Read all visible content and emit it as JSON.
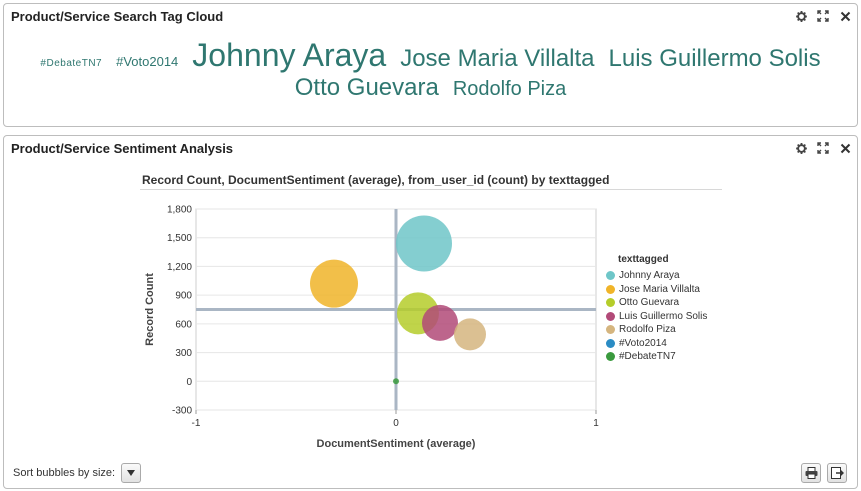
{
  "tagcloud_panel": {
    "title": "Product/Service Search Tag Cloud",
    "tags_row1": [
      {
        "text": "#DebateTN7",
        "size": "s1"
      },
      {
        "text": "#Voto2014",
        "size": "s2"
      },
      {
        "text": "Johnny Araya",
        "size": "s3"
      },
      {
        "text": "Jose Maria Villalta",
        "size": "s4"
      },
      {
        "text": "Luis Guillermo Solis",
        "size": "s4"
      }
    ],
    "tags_row2": [
      {
        "text": "Otto Guevara",
        "size": "s4"
      },
      {
        "text": "Rodolfo Piza",
        "size": "s5"
      }
    ]
  },
  "sentiment_panel": {
    "title": "Product/Service Sentiment Analysis",
    "sort_label": "Sort bubbles by size:"
  },
  "tool_icons": [
    "gear-icon",
    "maximize-icon",
    "close-icon"
  ],
  "chart_data": {
    "type": "scatter",
    "title": "Record Count, DocumentSentiment (average), from_user_id (count) by texttagged",
    "xlabel": "DocumentSentiment (average)",
    "ylabel": "Record Count",
    "xlim": [
      -1,
      1
    ],
    "ylim": [
      -300,
      1800
    ],
    "xticks": [
      -1,
      0,
      1
    ],
    "yticks": [
      -300,
      0,
      300,
      600,
      900,
      1200,
      1500,
      1800
    ],
    "ytick_labels": [
      "-300",
      "0",
      "300",
      "600",
      "900",
      "1,200",
      "1,500",
      "1,800"
    ],
    "reference_lines": {
      "x": 0,
      "y": 750
    },
    "grid": true,
    "legend_title": "texttagged",
    "legend_position": "right",
    "series": [
      {
        "name": "Johnny Araya",
        "x": 0.14,
        "y": 1440,
        "size": 28,
        "color": "#6ec6c8"
      },
      {
        "name": "Jose Maria  Villalta",
        "x": -0.31,
        "y": 1020,
        "size": 24,
        "color": "#f0b429"
      },
      {
        "name": "Otto Guevara",
        "x": 0.11,
        "y": 710,
        "size": 21,
        "color": "#b5cd2a"
      },
      {
        "name": "Luis Guillermo Solis",
        "x": 0.22,
        "y": 610,
        "size": 18,
        "color": "#b24a78"
      },
      {
        "name": "Rodolfo Piza",
        "x": 0.37,
        "y": 490,
        "size": 16,
        "color": "#d5b57f"
      },
      {
        "name": "#Voto2014",
        "x": 0,
        "y": 0,
        "size": 0,
        "color": "#2b8cc4"
      },
      {
        "name": "#DebateTN7",
        "x": 0,
        "y": 0,
        "size": 3,
        "color": "#3a9a3e"
      }
    ]
  }
}
